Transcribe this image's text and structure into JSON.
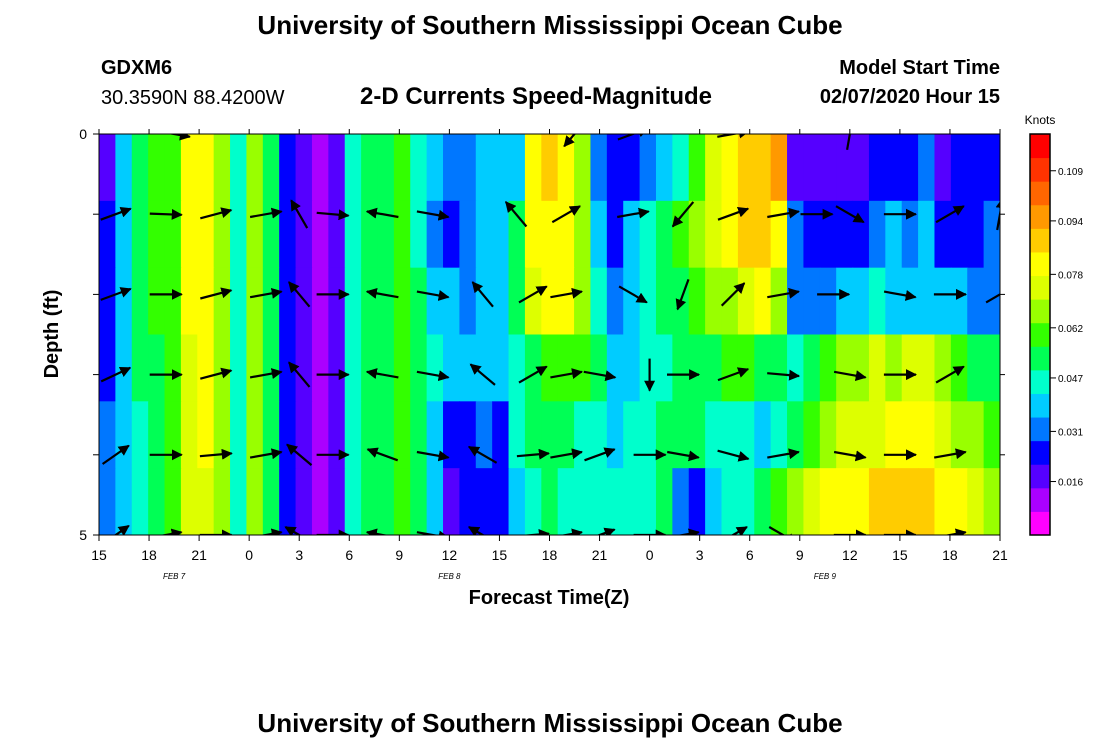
{
  "header": {
    "title": "University of Southern Mississippi Ocean Cube",
    "station_id": "GDXM6",
    "station_location": "30.3590N 88.4200W",
    "subtitle": "2-D Currents Speed-Magnitude",
    "model_start_label": "Model Start Time",
    "model_start_value": "02/07/2020 Hour 15"
  },
  "footer": {
    "title": "University of Southern Mississippi Ocean Cube"
  },
  "chart_data": {
    "type": "heatmap",
    "title": "2-D Currents Speed-Magnitude",
    "xlabel": "Forecast Time(Z)",
    "ylabel": "Depth (ft)",
    "x_ticks": [
      "15",
      "18",
      "21",
      "0",
      "3",
      "6",
      "9",
      "12",
      "15",
      "18",
      "21",
      "0",
      "3",
      "6",
      "9",
      "12",
      "15",
      "18",
      "21"
    ],
    "date_labels": [
      {
        "text": "FEB 7",
        "tick_index": 1.5
      },
      {
        "text": "FEB 8",
        "tick_index": 7
      },
      {
        "text": "FEB 9",
        "tick_index": 14.5
      }
    ],
    "x_range_hours": [
      0,
      54
    ],
    "y_tick_labels": [
      {
        "value": 0,
        "label": "0"
      },
      {
        "value": 5,
        "label": "5"
      }
    ],
    "y_minor_ticks": [
      1,
      2,
      3,
      4
    ],
    "ylim": [
      0,
      5
    ],
    "depth_rows": [
      0,
      1,
      2,
      3,
      4,
      5
    ],
    "colorbar": {
      "unit": "Knots",
      "min": 0.0,
      "max": 0.12,
      "tick_values": [
        0.016,
        0.031,
        0.047,
        0.062,
        0.078,
        0.094,
        0.109
      ],
      "tick_labels": [
        "0.016",
        "0.031",
        "0.047",
        "0.062",
        "0.078",
        "0.094",
        "0.109"
      ],
      "colors": [
        "#ff00ff",
        "#aa00ff",
        "#5500ff",
        "#0000ff",
        "#0077ff",
        "#00ccff",
        "#00ffcc",
        "#00ff55",
        "#33ff00",
        "#99ff00",
        "#ddff00",
        "#ffff00",
        "#ffcc00",
        "#ff9900",
        "#ff6600",
        "#ff3300",
        "#ff0000"
      ]
    },
    "speed_profiles": [
      {
        "depth": 0,
        "hours": [
          0,
          1,
          2,
          3,
          4,
          5,
          6,
          7,
          8,
          9,
          10,
          11,
          12,
          13,
          14,
          15,
          16,
          17,
          18,
          19,
          20,
          21,
          22,
          23,
          24,
          25,
          26,
          27,
          28,
          29,
          30,
          31,
          32,
          33,
          34,
          35,
          36,
          37,
          38,
          39,
          40,
          41,
          42,
          43,
          44,
          45,
          46,
          47,
          48,
          49,
          50,
          51,
          52,
          53,
          54
        ],
        "speeds": [
          0.016,
          0.04,
          0.052,
          0.058,
          0.062,
          0.084,
          0.086,
          0.07,
          0.045,
          0.07,
          0.05,
          0.02,
          0.012,
          0.01,
          0.018,
          0.045,
          0.05,
          0.052,
          0.06,
          0.045,
          0.035,
          0.028,
          0.03,
          0.035,
          0.038,
          0.04,
          0.085,
          0.09,
          0.086,
          0.07,
          0.032,
          0.02,
          0.025,
          0.03,
          0.038,
          0.045,
          0.06,
          0.076,
          0.082,
          0.088,
          0.09,
          0.095,
          0.018,
          0.016,
          0.014,
          0.012,
          0.018,
          0.02,
          0.025,
          0.022,
          0.03,
          0.018,
          0.02,
          0.02,
          0.025
        ]
      },
      {
        "depth": 1,
        "hours": [
          0,
          1,
          2,
          3,
          4,
          5,
          6,
          7,
          8,
          9,
          10,
          11,
          12,
          13,
          14,
          15,
          16,
          17,
          18,
          19,
          20,
          21,
          22,
          23,
          24,
          25,
          26,
          27,
          28,
          29,
          30,
          31,
          32,
          33,
          34,
          35,
          36,
          37,
          38,
          39,
          40,
          41,
          42,
          43,
          44,
          45,
          46,
          47,
          48,
          49,
          50,
          51,
          52,
          53,
          54
        ],
        "speeds": [
          0.02,
          0.036,
          0.052,
          0.058,
          0.062,
          0.082,
          0.086,
          0.07,
          0.045,
          0.07,
          0.05,
          0.02,
          0.012,
          0.01,
          0.018,
          0.045,
          0.05,
          0.055,
          0.062,
          0.045,
          0.033,
          0.025,
          0.03,
          0.036,
          0.04,
          0.052,
          0.082,
          0.086,
          0.084,
          0.07,
          0.04,
          0.025,
          0.035,
          0.045,
          0.055,
          0.06,
          0.068,
          0.076,
          0.085,
          0.092,
          0.09,
          0.085,
          0.03,
          0.025,
          0.025,
          0.02,
          0.022,
          0.028,
          0.035,
          0.03,
          0.038,
          0.025,
          0.02,
          0.022,
          0.03
        ]
      },
      {
        "depth": 2,
        "hours": [
          0,
          1,
          2,
          3,
          4,
          5,
          6,
          7,
          8,
          9,
          10,
          11,
          12,
          13,
          14,
          15,
          16,
          17,
          18,
          19,
          20,
          21,
          22,
          23,
          24,
          25,
          26,
          27,
          28,
          29,
          30,
          31,
          32,
          33,
          34,
          35,
          36,
          37,
          38,
          39,
          40,
          41,
          42,
          43,
          44,
          45,
          46,
          47,
          48,
          49,
          50,
          51,
          52,
          53,
          54
        ],
        "speeds": [
          0.022,
          0.035,
          0.05,
          0.057,
          0.062,
          0.08,
          0.084,
          0.07,
          0.045,
          0.068,
          0.05,
          0.02,
          0.012,
          0.01,
          0.018,
          0.045,
          0.05,
          0.055,
          0.062,
          0.05,
          0.04,
          0.036,
          0.032,
          0.035,
          0.04,
          0.05,
          0.078,
          0.082,
          0.08,
          0.07,
          0.045,
          0.03,
          0.038,
          0.045,
          0.05,
          0.055,
          0.06,
          0.065,
          0.07,
          0.076,
          0.08,
          0.07,
          0.03,
          0.028,
          0.03,
          0.035,
          0.04,
          0.045,
          0.04,
          0.035,
          0.038,
          0.04,
          0.035,
          0.03,
          0.032
        ]
      },
      {
        "depth": 3,
        "hours": [
          0,
          1,
          2,
          3,
          4,
          5,
          6,
          7,
          8,
          9,
          10,
          11,
          12,
          13,
          14,
          15,
          16,
          17,
          18,
          19,
          20,
          21,
          22,
          23,
          24,
          25,
          26,
          27,
          28,
          29,
          30,
          31,
          32,
          33,
          34,
          35,
          36,
          37,
          38,
          39,
          40,
          41,
          42,
          43,
          44,
          45,
          46,
          47,
          48,
          49,
          50,
          51,
          52,
          53,
          54
        ],
        "speeds": [
          0.025,
          0.035,
          0.05,
          0.055,
          0.06,
          0.078,
          0.082,
          0.07,
          0.045,
          0.066,
          0.05,
          0.02,
          0.012,
          0.01,
          0.018,
          0.045,
          0.05,
          0.055,
          0.06,
          0.05,
          0.045,
          0.04,
          0.036,
          0.038,
          0.035,
          0.042,
          0.055,
          0.06,
          0.062,
          0.058,
          0.05,
          0.035,
          0.04,
          0.044,
          0.048,
          0.05,
          0.052,
          0.055,
          0.058,
          0.06,
          0.055,
          0.05,
          0.045,
          0.05,
          0.06,
          0.065,
          0.07,
          0.072,
          0.07,
          0.075,
          0.072,
          0.068,
          0.06,
          0.055,
          0.05
        ]
      },
      {
        "depth": 4,
        "hours": [
          0,
          1,
          2,
          3,
          4,
          5,
          6,
          7,
          8,
          9,
          10,
          11,
          12,
          13,
          14,
          15,
          16,
          17,
          18,
          19,
          20,
          21,
          22,
          23,
          24,
          25,
          26,
          27,
          28,
          29,
          30,
          31,
          32,
          33,
          34,
          35,
          36,
          37,
          38,
          39,
          40,
          41,
          42,
          43,
          44,
          45,
          46,
          47,
          48,
          49,
          50,
          51,
          52,
          53,
          54
        ],
        "speeds": [
          0.03,
          0.035,
          0.048,
          0.054,
          0.058,
          0.076,
          0.08,
          0.068,
          0.045,
          0.066,
          0.05,
          0.02,
          0.012,
          0.01,
          0.018,
          0.045,
          0.05,
          0.055,
          0.06,
          0.05,
          0.04,
          0.02,
          0.025,
          0.03,
          0.025,
          0.045,
          0.05,
          0.052,
          0.05,
          0.048,
          0.045,
          0.04,
          0.044,
          0.048,
          0.05,
          0.05,
          0.05,
          0.048,
          0.045,
          0.042,
          0.04,
          0.045,
          0.055,
          0.062,
          0.07,
          0.072,
          0.074,
          0.078,
          0.08,
          0.082,
          0.08,
          0.075,
          0.07,
          0.065,
          0.06
        ]
      },
      {
        "depth": 5,
        "hours": [
          0,
          1,
          2,
          3,
          4,
          5,
          6,
          7,
          8,
          9,
          10,
          11,
          12,
          13,
          14,
          15,
          16,
          17,
          18,
          19,
          20,
          21,
          22,
          23,
          24,
          25,
          26,
          27,
          28,
          29,
          30,
          31,
          32,
          33,
          34,
          35,
          36,
          37,
          38,
          39,
          40,
          41,
          42,
          43,
          44,
          45,
          46,
          47,
          48,
          49,
          50,
          51,
          52,
          53,
          54
        ],
        "speeds": [
          0.032,
          0.036,
          0.048,
          0.054,
          0.058,
          0.074,
          0.078,
          0.068,
          0.045,
          0.064,
          0.05,
          0.02,
          0.012,
          0.01,
          0.018,
          0.045,
          0.05,
          0.055,
          0.058,
          0.05,
          0.038,
          0.018,
          0.02,
          0.022,
          0.02,
          0.038,
          0.045,
          0.05,
          0.048,
          0.046,
          0.044,
          0.042,
          0.046,
          0.048,
          0.05,
          0.03,
          0.025,
          0.035,
          0.045,
          0.048,
          0.05,
          0.058,
          0.066,
          0.075,
          0.082,
          0.085,
          0.086,
          0.088,
          0.09,
          0.09,
          0.088,
          0.085,
          0.08,
          0.075,
          0.07
        ]
      }
    ],
    "vectors": [
      {
        "depth": 0,
        "hours": [
          4.5,
          28.5,
          32,
          38,
          45
        ],
        "directions_deg": [
          100,
          220,
          70,
          80,
          10
        ]
      },
      {
        "depth": 1,
        "hours": [
          1,
          4,
          7,
          10,
          12,
          14,
          17,
          20,
          25,
          28,
          32,
          35,
          38,
          41,
          43,
          45,
          48,
          51,
          54
        ],
        "directions_deg": [
          70,
          92,
          75,
          80,
          330,
          95,
          280,
          100,
          320,
          60,
          80,
          220,
          70,
          80,
          90,
          120,
          90,
          60,
          10
        ]
      },
      {
        "depth": 2,
        "hours": [
          1,
          4,
          7,
          10,
          12,
          14,
          17,
          20,
          23,
          26,
          28,
          32,
          35,
          38,
          41,
          44,
          48,
          51,
          54
        ],
        "directions_deg": [
          70,
          90,
          75,
          80,
          320,
          90,
          280,
          100,
          320,
          60,
          80,
          120,
          200,
          45,
          80,
          90,
          100,
          90,
          60
        ]
      },
      {
        "depth": 3,
        "hours": [
          1,
          4,
          7,
          10,
          12,
          14,
          17,
          20,
          23,
          26,
          28,
          30,
          33,
          35,
          38,
          41,
          45,
          48,
          51,
          54
        ],
        "directions_deg": [
          65,
          90,
          75,
          80,
          320,
          90,
          280,
          100,
          310,
          60,
          80,
          100,
          180,
          90,
          70,
          95,
          100,
          90,
          60
        ]
      },
      {
        "depth": 4,
        "hours": [
          1,
          4,
          7,
          10,
          12,
          14,
          17,
          20,
          23,
          26,
          28,
          30,
          33,
          35,
          38,
          41,
          45,
          48,
          51,
          54
        ],
        "directions_deg": [
          55,
          90,
          85,
          80,
          310,
          90,
          290,
          100,
          300,
          85,
          80,
          70,
          90,
          100,
          105,
          80,
          100,
          90,
          80
        ]
      },
      {
        "depth": 5,
        "hours": [
          1,
          4,
          7,
          10,
          12,
          14,
          17,
          20,
          23,
          26,
          28,
          30,
          33,
          35,
          38,
          41,
          45,
          48,
          51,
          54
        ],
        "directions_deg": [
          55,
          80,
          90,
          80,
          300,
          90,
          280,
          100,
          300,
          85,
          80,
          70,
          90,
          80,
          60,
          120,
          90,
          90,
          80
        ]
      }
    ]
  }
}
